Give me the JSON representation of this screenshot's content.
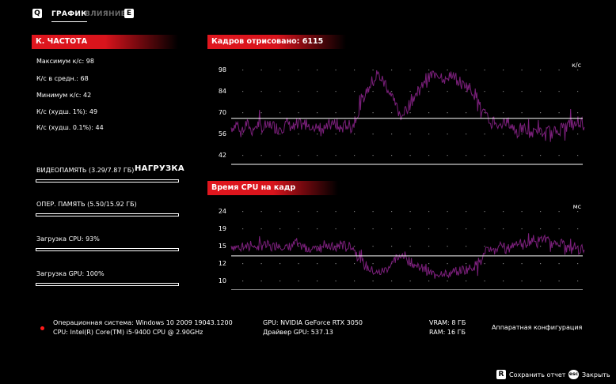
{
  "tabs": {
    "left_key": "Q",
    "graph": "ГРАФИК",
    "influence": "ВЛИЯНИЕ",
    "right_key": "E"
  },
  "fps_panel": {
    "header": "К. ЧАСТОТА",
    "max": "Максимум к/с: 98",
    "avg": "К/с в средн.: 68",
    "min": "Минимум к/с: 42",
    "low1": "К/с (худш. 1%): 49",
    "low01": "К/с (худш. 0.1%): 44"
  },
  "load_panel": {
    "title": "НАГРУЗКА",
    "vram_label": "ВИДЕОПАМЯТЬ (3.29/7.87 ГБ)",
    "vram_fraction": 0.418,
    "ram_label": "ОПЕР. ПАМЯТЬ (5.50/15.92 ГБ)",
    "ram_fraction": 0.345,
    "cpu_label": "Загрузка CPU: 93%",
    "cpu_fraction": 0.93,
    "gpu_label": "Загрузка GPU: 100%",
    "gpu_fraction": 1.0
  },
  "charts": {
    "frames_header": "Кадров отрисовано: 6115",
    "cpu_header": "Время CPU на кадр"
  },
  "chart_data": [
    {
      "type": "line",
      "unit": "к/с",
      "yticks": [
        "98",
        "84",
        "70",
        "56",
        "42"
      ],
      "ylim": [
        42,
        98
      ],
      "reference_line": 66,
      "grid": "dotted",
      "color": "#7a1f7a",
      "values": [
        60,
        61,
        62,
        60,
        59,
        60,
        62,
        61,
        58,
        60,
        61,
        62,
        60,
        59,
        61,
        60,
        62,
        61,
        60,
        59,
        61,
        60,
        62,
        63,
        61,
        60,
        59,
        60,
        62,
        61,
        62,
        63,
        62,
        61,
        60,
        62,
        61,
        60,
        59,
        61,
        62,
        61,
        63,
        62,
        60,
        59,
        60,
        62,
        61,
        60,
        62,
        66,
        70,
        74,
        78,
        82,
        85,
        88,
        90,
        92,
        95,
        93,
        91,
        89,
        86,
        83,
        80,
        76,
        73,
        70,
        68,
        70,
        72,
        75,
        78,
        80,
        82,
        84,
        86,
        88,
        90,
        92,
        94,
        95,
        96,
        95,
        94,
        93,
        92,
        94,
        95,
        93,
        92,
        91,
        90,
        88,
        89,
        87,
        86,
        84,
        82,
        80,
        76,
        72,
        70,
        66,
        64,
        62,
        65,
        63,
        61,
        60,
        62,
        64,
        63,
        61,
        60,
        58,
        57,
        59,
        60,
        59,
        58,
        57,
        56,
        58,
        59,
        57,
        56,
        55,
        57,
        58,
        56,
        57,
        58,
        59,
        60,
        59,
        61,
        62,
        63,
        61,
        62,
        64,
        63,
        62
      ]
    },
    {
      "type": "line",
      "unit": "мс",
      "yticks": [
        "24",
        "19",
        "15",
        "12",
        "10"
      ],
      "ylim": [
        9,
        24
      ],
      "reference_line": 14.3,
      "grid": "dotted",
      "color": "#7a1f7a",
      "values": [
        16.5,
        16.3,
        16.1,
        16.4,
        16.8,
        16.6,
        16.2,
        16.0,
        17.2,
        16.6,
        16.2,
        16.0,
        16.5,
        16.9,
        16.4,
        16.6,
        16.1,
        16.3,
        16.6,
        16.9,
        16.4,
        16.6,
        16.1,
        15.9,
        16.3,
        16.6,
        16.9,
        16.6,
        16.1,
        16.3,
        16.1,
        15.9,
        16.1,
        16.3,
        16.6,
        16.1,
        16.3,
        16.6,
        16.9,
        16.4,
        16.1,
        16.3,
        15.9,
        16.1,
        16.6,
        16.9,
        16.6,
        16.1,
        16.3,
        16.6,
        16.1,
        15.2,
        14.3,
        13.5,
        12.8,
        12.2,
        11.8,
        11.4,
        11.1,
        10.9,
        10.5,
        10.8,
        11.0,
        11.3,
        11.7,
        12.1,
        12.5,
        13.2,
        13.7,
        14.3,
        14.7,
        14.3,
        13.9,
        13.3,
        12.8,
        12.5,
        12.2,
        11.9,
        11.6,
        11.4,
        11.1,
        10.9,
        10.6,
        10.5,
        10.4,
        10.5,
        10.6,
        10.8,
        10.9,
        10.6,
        10.5,
        10.8,
        10.9,
        11.0,
        11.1,
        11.4,
        11.2,
        11.5,
        11.6,
        11.9,
        12.2,
        12.5,
        13.2,
        13.9,
        14.3,
        15.2,
        15.6,
        16.1,
        15.4,
        15.9,
        16.4,
        16.6,
        16.1,
        15.6,
        15.9,
        16.4,
        16.6,
        17.2,
        17.5,
        16.9,
        16.6,
        16.9,
        17.2,
        17.5,
        17.9,
        17.2,
        16.9,
        17.5,
        17.9,
        18.2,
        17.5,
        17.2,
        16.9,
        16.6,
        17.2,
        17.5,
        17.2,
        16.6,
        16.1,
        15.8,
        15.6,
        16.4,
        16.1,
        15.6,
        15.8,
        16.1
      ]
    }
  ],
  "system_info": {
    "os": "Операционная система: Windows 10 2009 19043.1200",
    "cpu": "CPU: Intel(R) Core(TM) i5-9400 CPU @ 2.90GHz",
    "gpu": "GPU: NVIDIA GeForce RTX 3050",
    "driver": "Драйвер GPU: 537.13",
    "vram": "VRAM: 8 ГБ",
    "ram": "RAM: 16 ГБ",
    "hw_config": "Аппаратная конфигурация"
  },
  "footer": {
    "save_key": "R",
    "save_label": "Сохранить отчет",
    "close_key": "esc",
    "close_label": "Закрыть"
  },
  "colors": {
    "accent_red": "#e0161e",
    "graph_line": "#7a1f7a"
  }
}
